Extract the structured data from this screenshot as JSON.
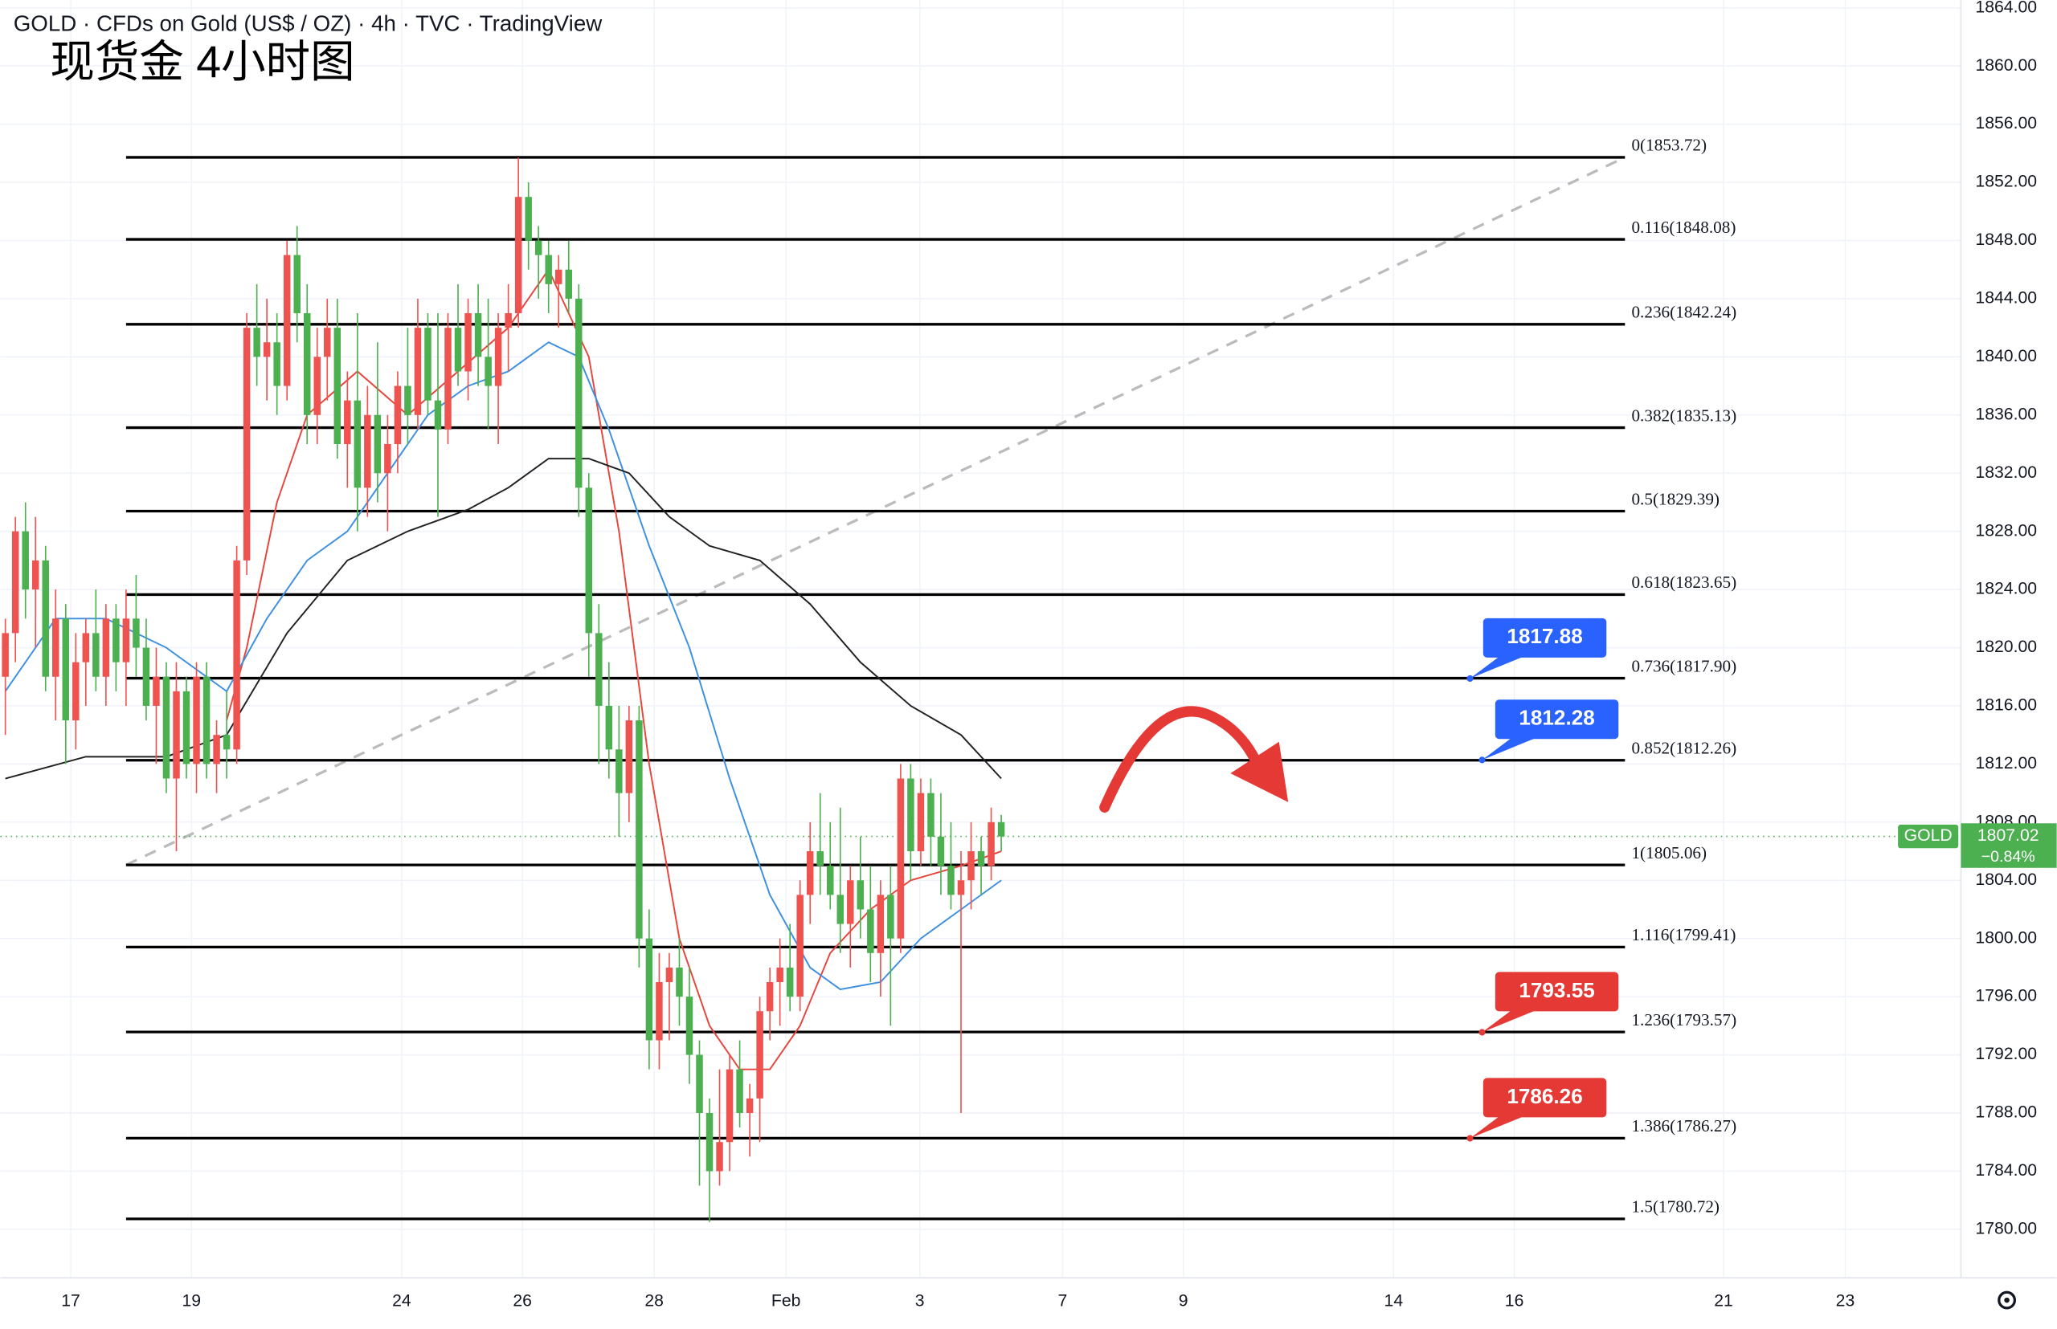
{
  "chart_data": {
    "type": "candlestick",
    "header": "GOLD · CFDs on Gold (US$ / OZ) · 4h · TVC · TradingView",
    "title": "现货金 4小时图",
    "up_color": "#ef5350",
    "down_color": "#4caf50",
    "x": [
      0,
      1,
      2,
      3,
      4,
      5,
      6,
      7,
      8,
      9,
      10,
      11,
      12,
      13,
      14,
      15,
      16,
      17,
      18,
      19,
      20,
      21,
      22,
      23,
      24,
      25,
      26,
      27,
      28,
      29,
      30,
      31,
      32,
      33,
      34,
      35,
      36,
      37,
      38,
      39,
      40,
      41,
      42,
      43,
      44,
      45,
      46,
      47,
      48,
      49,
      50,
      51,
      52,
      53,
      54,
      55,
      56,
      57,
      58,
      59,
      60,
      61,
      62,
      63,
      64,
      65,
      66,
      67,
      68,
      69,
      70,
      71,
      72,
      73,
      74,
      75,
      76,
      77,
      78,
      79,
      80,
      81,
      82,
      83,
      84,
      85,
      86,
      87,
      88,
      89,
      90,
      91,
      92,
      93,
      94,
      95,
      96,
      97,
      98,
      99
    ],
    "open": [
      1818,
      1821,
      1828,
      1824,
      1826,
      1818,
      1822,
      1815,
      1819,
      1821,
      1818,
      1822,
      1819,
      1822,
      1820,
      1816,
      1818,
      1811,
      1817,
      1812,
      1818,
      1812,
      1814,
      1813,
      1826,
      1842,
      1840,
      1841,
      1838,
      1847,
      1843,
      1836,
      1840,
      1842,
      1834,
      1837,
      1831,
      1836,
      1832,
      1834,
      1838,
      1836,
      1842,
      1837,
      1835,
      1842,
      1839,
      1843,
      1840,
      1838,
      1842,
      1843,
      1851,
      1848,
      1847,
      1845,
      1846,
      1844,
      1831,
      1821,
      1816,
      1813,
      1810,
      1815,
      1800,
      1793,
      1797,
      1798,
      1796,
      1792,
      1788,
      1784,
      1786,
      1791,
      1788,
      1789,
      1795,
      1797,
      1798,
      1796,
      1803,
      1806,
      1805,
      1803,
      1801,
      1804,
      1802,
      1799,
      1803,
      1800,
      1811,
      1806,
      1810,
      1807,
      1805,
      1803,
      1804,
      1806,
      1805,
      1808
    ],
    "high": [
      1822,
      1829,
      1830,
      1829,
      1827,
      1824,
      1823,
      1821,
      1822,
      1824,
      1823,
      1823,
      1824,
      1825,
      1822,
      1820,
      1819,
      1819,
      1818,
      1819,
      1819,
      1815,
      1817,
      1827,
      1843,
      1845,
      1844,
      1843,
      1848,
      1849,
      1845,
      1842,
      1844,
      1844,
      1839,
      1843,
      1838,
      1841,
      1836,
      1839,
      1842,
      1844,
      1843,
      1843,
      1843,
      1845,
      1844,
      1845,
      1844,
      1843,
      1845,
      1853.7,
      1852,
      1849,
      1848,
      1847,
      1848,
      1845,
      1832,
      1823,
      1819,
      1816,
      1816,
      1816,
      1802,
      1799,
      1799,
      1800,
      1798,
      1793,
      1789,
      1791,
      1792,
      1793,
      1790,
      1796,
      1798,
      1800,
      1801,
      1804,
      1808,
      1810,
      1808,
      1809,
      1805,
      1807,
      1805,
      1804,
      1805,
      1812,
      1812,
      1811,
      1811,
      1810,
      1808,
      1806,
      1808,
      1807,
      1809,
      1808.5
    ],
    "low": [
      1814,
      1819,
      1822,
      1820,
      1817,
      1815,
      1812,
      1813,
      1816,
      1817,
      1816,
      1817,
      1816,
      1818,
      1815,
      1812,
      1810,
      1806,
      1811,
      1810,
      1811,
      1810,
      1811,
      1812,
      1825,
      1838,
      1837,
      1836,
      1837,
      1841,
      1834,
      1834,
      1837,
      1833,
      1831,
      1828,
      1829,
      1830,
      1828,
      1832,
      1834,
      1835,
      1836,
      1829,
      1834,
      1838,
      1837,
      1838,
      1835,
      1834,
      1839,
      1842,
      1846,
      1844,
      1843,
      1842,
      1843,
      1829,
      1818,
      1812,
      1811,
      1807,
      1808,
      1798,
      1791,
      1791,
      1793,
      1794,
      1790,
      1783,
      1780.5,
      1783,
      1784,
      1787,
      1785,
      1786,
      1793,
      1794,
      1795,
      1795,
      1801,
      1803,
      1802,
      1799,
      1798,
      1800,
      1797,
      1796,
      1794,
      1799,
      1804,
      1805,
      1805,
      1803,
      1802,
      1788,
      1802,
      1803,
      1804,
      1806
    ],
    "close": [
      1821,
      1828,
      1824,
      1826,
      1818,
      1822,
      1815,
      1819,
      1821,
      1818,
      1822,
      1819,
      1822,
      1820,
      1816,
      1818,
      1811,
      1817,
      1812,
      1818,
      1812,
      1814,
      1813,
      1826,
      1842,
      1840,
      1841,
      1838,
      1847,
      1843,
      1836,
      1840,
      1842,
      1834,
      1837,
      1831,
      1836,
      1832,
      1834,
      1838,
      1836,
      1842,
      1837,
      1835,
      1842,
      1839,
      1843,
      1840,
      1838,
      1842,
      1843,
      1851,
      1848,
      1847,
      1845,
      1846,
      1844,
      1831,
      1821,
      1816,
      1813,
      1810,
      1815,
      1800,
      1793,
      1797,
      1798,
      1796,
      1792,
      1788,
      1784,
      1786,
      1791,
      1788,
      1789,
      1795,
      1797,
      1798,
      1796,
      1803,
      1806,
      1805,
      1803,
      1801,
      1804,
      1802,
      1799,
      1803,
      1800,
      1811,
      1806,
      1810,
      1807,
      1805,
      1803,
      1804,
      1806,
      1805,
      1808,
      1807.02
    ],
    "moving_averages": [
      {
        "color": "#e8453c",
        "x": [
          22,
          24,
          27,
          30,
          35,
          40,
          45,
          50,
          54,
          58,
          61,
          64,
          67,
          70,
          73,
          76,
          79,
          82,
          86,
          90,
          95,
          99
        ],
        "values": [
          1815,
          1820,
          1830,
          1836,
          1839,
          1836,
          1839,
          1842,
          1846,
          1840,
          1828,
          1812,
          1800,
          1794,
          1791,
          1791,
          1794,
          1799,
          1802,
          1804,
          1805,
          1806
        ]
      },
      {
        "color": "#3d8fe0",
        "x": [
          0,
          5,
          10,
          16,
          22,
          26,
          30,
          34,
          38,
          42,
          46,
          50,
          54,
          57,
          60,
          64,
          68,
          72,
          76,
          80,
          83,
          87,
          91,
          95,
          99
        ],
        "values": [
          1817,
          1822,
          1822,
          1820,
          1817,
          1822,
          1826,
          1828,
          1832,
          1836,
          1838,
          1839,
          1841,
          1840,
          1835,
          1827,
          1820,
          1811,
          1803,
          1798,
          1796.5,
          1797,
          1800,
          1802,
          1804
        ]
      },
      {
        "color": "#222222",
        "x": [
          0,
          8,
          16,
          22,
          28,
          34,
          40,
          46,
          50,
          54,
          58,
          62,
          66,
          70,
          75,
          80,
          85,
          90,
          95,
          99
        ],
        "values": [
          1811,
          1812.5,
          1812.5,
          1814,
          1821,
          1826,
          1828,
          1829.5,
          1831,
          1833,
          1833,
          1832,
          1829,
          1827,
          1826,
          1823,
          1819,
          1816,
          1814,
          1811
        ]
      }
    ],
    "trendline": {
      "x": [
        12,
        161
      ],
      "values": [
        1805.06,
        1853.72
      ],
      "color": "#bbbbbb"
    },
    "fib": {
      "x": [
        12,
        161
      ],
      "levels": [
        {
          "value": 1853.72,
          "label": "0(1853.72)"
        },
        {
          "value": 1848.08,
          "label": "0.116(1848.08)"
        },
        {
          "value": 1842.24,
          "label": "0.236(1842.24)"
        },
        {
          "value": 1835.13,
          "label": "0.382(1835.13)"
        },
        {
          "value": 1829.39,
          "label": "0.5(1829.39)"
        },
        {
          "value": 1823.65,
          "label": "0.618(1823.65)"
        },
        {
          "value": 1817.9,
          "label": "0.736(1817.90)"
        },
        {
          "value": 1812.26,
          "label": "0.852(1812.26)"
        },
        {
          "value": 1805.06,
          "label": "1(1805.06)"
        },
        {
          "value": 1799.41,
          "label": "1.116(1799.41)"
        },
        {
          "value": 1793.57,
          "label": "1.236(1793.57)"
        },
        {
          "value": 1786.27,
          "label": "1.386(1786.27)"
        },
        {
          "value": 1780.72,
          "label": "1.5(1780.72)"
        }
      ]
    },
    "callouts": [
      {
        "value": 1817.88,
        "x": 145.6,
        "color": "#2962ff"
      },
      {
        "value": 1812.28,
        "x": 146.8,
        "color": "#2962ff"
      },
      {
        "value": 1793.55,
        "x": 146.8,
        "color": "#e53935"
      },
      {
        "value": 1786.26,
        "x": 145.6,
        "color": "#e53935"
      }
    ],
    "last": {
      "name": "GOLD",
      "value": 1807.02,
      "change": {
        "value": -0.84,
        "label": "−0.84%"
      },
      "color": "#4caf50"
    },
    "xlim": [
      -0.5,
      194.4
    ],
    "xticks": [
      {
        "value": 6.5,
        "label": "17"
      },
      {
        "value": 18.5,
        "label": "19"
      },
      {
        "value": 39.4,
        "label": "24"
      },
      {
        "value": 51.4,
        "label": "26"
      },
      {
        "value": 64.5,
        "label": "28"
      },
      {
        "value": 77.6,
        "label": "Feb"
      },
      {
        "value": 90.9,
        "label": "3"
      },
      {
        "value": 105.1,
        "label": "7"
      },
      {
        "value": 117.1,
        "label": "9"
      },
      {
        "value": 138,
        "label": "14"
      },
      {
        "value": 150,
        "label": "16"
      },
      {
        "value": 170.8,
        "label": "21"
      },
      {
        "value": 182.9,
        "label": "23"
      }
    ],
    "ylim": [
      1776.66,
      1864.54
    ],
    "yticks": [
      {
        "value": 1780,
        "label": "1780.00"
      },
      {
        "value": 1784,
        "label": "1784.00"
      },
      {
        "value": 1788,
        "label": "1788.00"
      },
      {
        "value": 1792,
        "label": "1792.00"
      },
      {
        "value": 1796,
        "label": "1796.00"
      },
      {
        "value": 1800,
        "label": "1800.00"
      },
      {
        "value": 1804,
        "label": "1804.00"
      },
      {
        "value": 1808,
        "label": "1808.00"
      },
      {
        "value": 1812,
        "label": "1812.00"
      },
      {
        "value": 1816,
        "label": "1816.00"
      },
      {
        "value": 1820,
        "label": "1820.00"
      },
      {
        "value": 1824,
        "label": "1824.00"
      },
      {
        "value": 1828,
        "label": "1828.00"
      },
      {
        "value": 1832,
        "label": "1832.00"
      },
      {
        "value": 1836,
        "label": "1836.00"
      },
      {
        "value": 1840,
        "label": "1840.00"
      },
      {
        "value": 1844,
        "label": "1844.00"
      },
      {
        "value": 1848,
        "label": "1848.00"
      },
      {
        "value": 1852,
        "label": "1852.00"
      },
      {
        "value": 1856,
        "label": "1856.00"
      },
      {
        "value": 1860,
        "label": "1860.00"
      },
      {
        "value": 1864,
        "label": "1864.00"
      }
    ],
    "grid": true
  }
}
